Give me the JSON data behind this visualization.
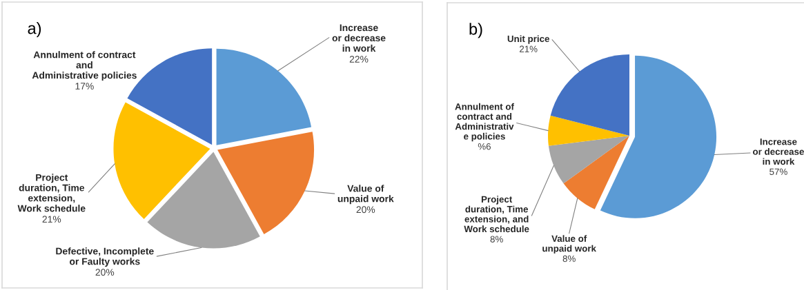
{
  "chart_data": [
    {
      "type": "pie",
      "title": "a)",
      "categories": [
        "Increase\nor decrease\nin work",
        "Value of\nunpaid work",
        "Defective, Incomplete\nor Faulty works",
        "Project\nduration, Time\nextension,\nWork schedule",
        "Annulment of contract\nand\nAdministrative policies"
      ],
      "values": [
        22,
        20,
        20,
        21,
        17
      ],
      "colors": [
        "#5b9bd5",
        "#ed7d31",
        "#a5a5a5",
        "#ffc000",
        "#4472c4"
      ],
      "value_labels": [
        "22%",
        "20%",
        "20%",
        "21%",
        "17%"
      ]
    },
    {
      "type": "pie",
      "title": "b)",
      "categories": [
        "Increase\nor decrease\nin work",
        "Value of\nunpaid work",
        "Project\nduration, Time\nextension, and\nWork schedule",
        "Annulment of\ncontract and\nAdministrativ\ne policies",
        "Unit price"
      ],
      "values": [
        57,
        8,
        8,
        6,
        21
      ],
      "colors": [
        "#5b9bd5",
        "#ed7d31",
        "#a5a5a5",
        "#ffc000",
        "#4472c4"
      ],
      "value_labels": [
        "57%",
        "8%",
        "8%",
        "%6",
        "21%"
      ]
    }
  ]
}
